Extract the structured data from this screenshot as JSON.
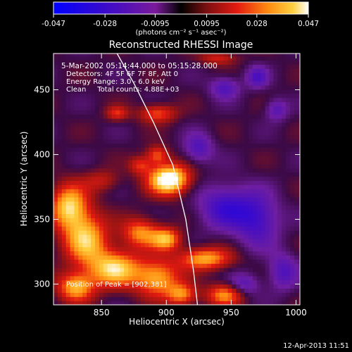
{
  "chart_data": {
    "type": "heatmap",
    "title": "Reconstructed RHESSI Image",
    "xlabel": "Heliocentric X (arcsec)",
    "ylabel": "Heliocentric Y (arcsec)",
    "xlim": [
      813,
      1003
    ],
    "ylim": [
      284,
      478
    ],
    "x_ticks": [
      850,
      900,
      950,
      1000
    ],
    "y_ticks": [
      300,
      350,
      400,
      450
    ],
    "colorbar": {
      "range": [
        -0.047,
        0.047
      ],
      "tick_labels": [
        "-0.047",
        "-0.028",
        "-0.0095",
        "0.0095",
        "0.028",
        "0.047"
      ],
      "tick_values": [
        -0.047,
        -0.028,
        -0.0095,
        0.0095,
        0.028,
        0.047
      ],
      "unit_label": "(photons cm⁻² s⁻¹ asec⁻²)"
    },
    "annotations": {
      "time_range": "5-Mar-2002 05:14:44.000 to 05:15:28.000",
      "detectors": "Detectors: 4F 5F 6F 7F 8F, Att 0",
      "energy": "Energy Range: 3.0 - 6.0 keV",
      "clean": "Clean     Total counts: 4.88E+03",
      "peak": "Position of Peak = [902,381]"
    },
    "peak": [
      902,
      381
    ],
    "limb_curve": [
      [
        862,
        478
      ],
      [
        875,
        455
      ],
      [
        890,
        425
      ],
      [
        905,
        392
      ],
      [
        915,
        350
      ],
      [
        921,
        310
      ],
      [
        924,
        284
      ]
    ],
    "sources": [
      {
        "x": 902,
        "y": 381,
        "sx": 11,
        "sy": 8,
        "amp": 0.055
      },
      {
        "x": 880,
        "y": 392,
        "sx": 6,
        "sy": 5,
        "amp": 0.02
      },
      {
        "x": 893,
        "y": 400,
        "sx": 6,
        "sy": 5,
        "amp": 0.025
      },
      {
        "x": 893,
        "y": 432,
        "sx": 10,
        "sy": 5,
        "amp": 0.025
      },
      {
        "x": 862,
        "y": 432,
        "sx": 6,
        "sy": 4,
        "amp": 0.02
      },
      {
        "x": 940,
        "y": 475,
        "sx": 10,
        "sy": 4,
        "amp": 0.018
      },
      {
        "x": 825,
        "y": 360,
        "sx": 10,
        "sy": 12,
        "amp": 0.04
      },
      {
        "x": 838,
        "y": 335,
        "sx": 12,
        "sy": 14,
        "amp": 0.038
      },
      {
        "x": 860,
        "y": 312,
        "sx": 14,
        "sy": 10,
        "amp": 0.04
      },
      {
        "x": 830,
        "y": 298,
        "sx": 10,
        "sy": 8,
        "amp": 0.035
      },
      {
        "x": 880,
        "y": 340,
        "sx": 10,
        "sy": 8,
        "amp": 0.03
      },
      {
        "x": 900,
        "y": 335,
        "sx": 8,
        "sy": 6,
        "amp": 0.035
      },
      {
        "x": 893,
        "y": 305,
        "sx": 12,
        "sy": 10,
        "amp": 0.035
      },
      {
        "x": 930,
        "y": 320,
        "sx": 14,
        "sy": 6,
        "amp": 0.035
      },
      {
        "x": 945,
        "y": 292,
        "sx": 10,
        "sy": 6,
        "amp": 0.03
      },
      {
        "x": 912,
        "y": 292,
        "sx": 8,
        "sy": 6,
        "amp": 0.03
      },
      {
        "x": 850,
        "y": 380,
        "sx": 10,
        "sy": 6,
        "amp": 0.015
      },
      {
        "x": 945,
        "y": 360,
        "sx": 14,
        "sy": 12,
        "amp": -0.025
      },
      {
        "x": 970,
        "y": 350,
        "sx": 12,
        "sy": 14,
        "amp": -0.025
      },
      {
        "x": 925,
        "y": 405,
        "sx": 8,
        "sy": 8,
        "amp": -0.02
      },
      {
        "x": 945,
        "y": 452,
        "sx": 8,
        "sy": 6,
        "amp": -0.02
      },
      {
        "x": 970,
        "y": 460,
        "sx": 6,
        "sy": 6,
        "amp": -0.02
      },
      {
        "x": 985,
        "y": 435,
        "sx": 6,
        "sy": 6,
        "amp": -0.018
      },
      {
        "x": 960,
        "y": 300,
        "sx": 8,
        "sy": 6,
        "amp": -0.018
      },
      {
        "x": 990,
        "y": 310,
        "sx": 8,
        "sy": 10,
        "amp": -0.02
      }
    ]
  },
  "footer": {
    "timestamp": "12-Apr-2013 11:51"
  }
}
